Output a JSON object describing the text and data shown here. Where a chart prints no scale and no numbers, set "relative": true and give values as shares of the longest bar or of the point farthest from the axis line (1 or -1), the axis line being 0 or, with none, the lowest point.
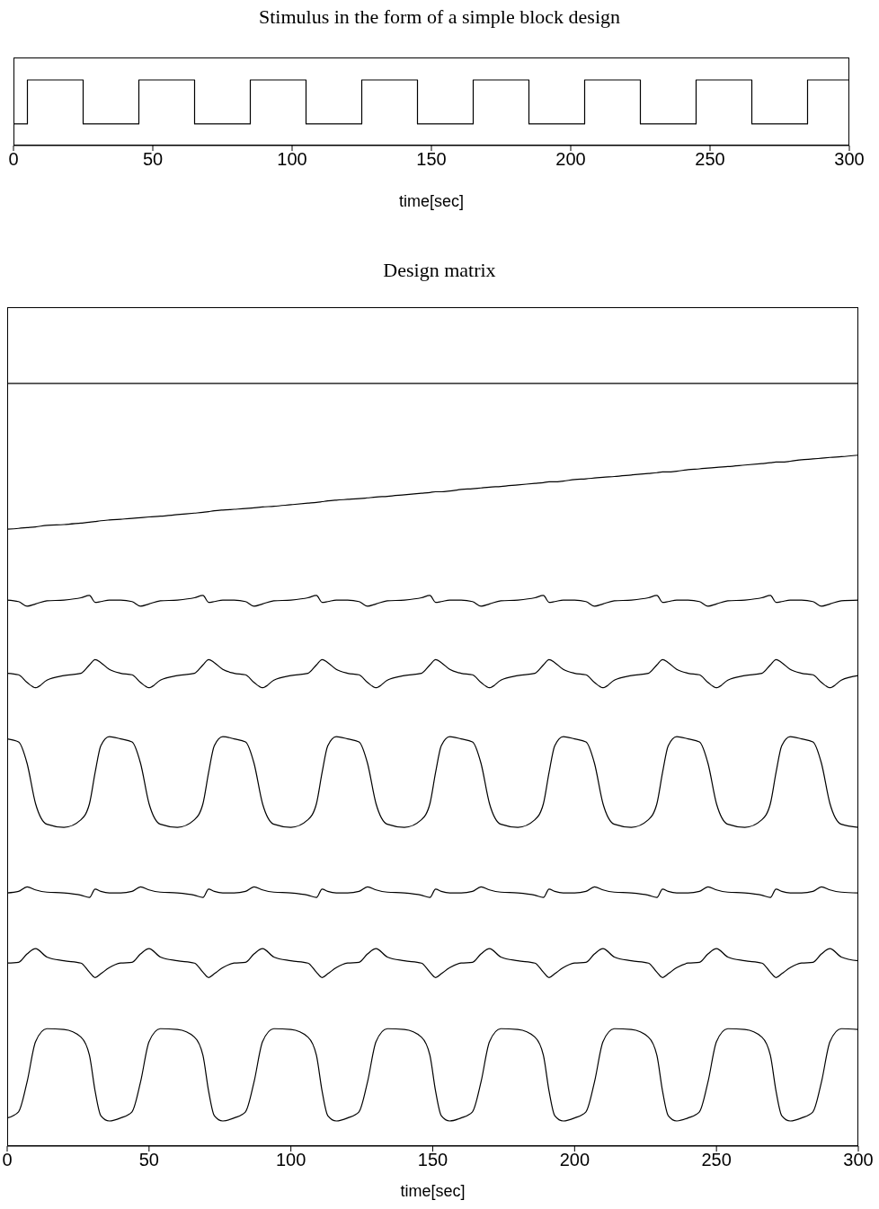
{
  "chart_data": [
    {
      "type": "step",
      "title": "Stimulus in the form of a simple block design",
      "xlabel": "time[sec]",
      "relative": true,
      "xlim": [
        0,
        300
      ],
      "xticks": [
        0,
        50,
        100,
        150,
        200,
        250,
        300
      ],
      "color": "#000000",
      "x": [
        0,
        5,
        25,
        45,
        65,
        85,
        105,
        125,
        145,
        165,
        185,
        205,
        225,
        245,
        265,
        285,
        300
      ],
      "values": [
        0.33,
        1,
        0.33,
        1,
        0.33,
        1,
        0.33,
        1,
        0.33,
        1,
        0.33,
        1,
        0.33,
        1,
        0.33,
        1,
        1
      ]
    },
    {
      "type": "line",
      "title": "Design matrix",
      "xlabel": "time[sec]",
      "relative": true,
      "xlim": [
        0,
        300
      ],
      "xticks": [
        0,
        50,
        100,
        150,
        200,
        250,
        300
      ],
      "x": [
        0,
        4,
        7,
        10,
        14,
        20,
        26,
        29,
        31,
        33,
        36,
        40,
        44,
        47,
        50,
        54,
        60,
        66,
        69,
        71,
        73,
        76,
        80,
        84,
        87,
        90,
        94,
        100,
        106,
        109,
        111,
        113,
        116,
        120,
        124,
        127,
        130,
        134,
        140,
        146,
        149,
        151,
        153,
        156,
        160,
        164,
        167,
        170,
        174,
        180,
        186,
        189,
        191,
        193,
        196,
        200,
        204,
        207,
        210,
        214,
        220,
        226,
        229,
        231,
        233,
        236,
        240,
        244,
        247,
        250,
        254,
        260,
        266,
        269,
        271,
        273,
        276,
        280,
        284,
        287,
        290,
        294,
        300
      ],
      "series": [
        {
          "color": "#000000",
          "values": [
            1,
            1,
            1,
            1,
            1,
            1,
            1,
            1,
            1,
            1,
            1,
            1,
            1,
            1,
            1,
            1,
            1,
            1,
            1,
            1,
            1,
            1,
            1,
            1,
            1,
            1,
            1,
            1,
            1,
            1,
            1,
            1,
            1,
            1,
            1,
            1,
            1,
            1,
            1,
            1,
            1,
            1,
            1,
            1,
            1,
            1,
            1,
            1,
            1,
            1,
            1,
            1,
            1,
            1,
            1,
            1,
            1,
            1,
            1,
            1,
            1,
            1,
            1,
            1,
            1,
            1,
            1,
            1,
            1,
            1,
            1,
            1,
            1,
            1,
            1,
            1,
            1,
            1,
            1,
            1,
            1,
            1,
            1
          ]
        },
        {
          "color": "#000000",
          "values": [
            0.809,
            0.81,
            0.811,
            0.812,
            0.814,
            0.815,
            0.817,
            0.818,
            0.819,
            0.82,
            0.821,
            0.822,
            0.823,
            0.824,
            0.825,
            0.826,
            0.828,
            0.83,
            0.831,
            0.832,
            0.833,
            0.834,
            0.835,
            0.836,
            0.837,
            0.838,
            0.839,
            0.841,
            0.843,
            0.844,
            0.845,
            0.846,
            0.847,
            0.848,
            0.849,
            0.85,
            0.851,
            0.852,
            0.854,
            0.856,
            0.857,
            0.858,
            0.858,
            0.859,
            0.861,
            0.862,
            0.863,
            0.864,
            0.865,
            0.867,
            0.869,
            0.87,
            0.871,
            0.871,
            0.872,
            0.874,
            0.875,
            0.876,
            0.877,
            0.878,
            0.88,
            0.882,
            0.883,
            0.884,
            0.884,
            0.885,
            0.887,
            0.888,
            0.889,
            0.89,
            0.891,
            0.893,
            0.895,
            0.896,
            0.897,
            0.897,
            0.898,
            0.9,
            0.901,
            0.902,
            0.903,
            0.904,
            0.906
          ]
        },
        {
          "color": "#000000",
          "values": [
            0.716,
            0.714,
            0.708,
            0.711,
            0.715,
            0.716,
            0.719,
            0.722,
            0.713,
            0.714,
            0.716,
            0.716,
            0.714,
            0.708,
            0.711,
            0.715,
            0.716,
            0.719,
            0.722,
            0.713,
            0.714,
            0.716,
            0.716,
            0.714,
            0.708,
            0.711,
            0.715,
            0.716,
            0.719,
            0.722,
            0.713,
            0.714,
            0.716,
            0.716,
            0.714,
            0.708,
            0.711,
            0.715,
            0.716,
            0.719,
            0.722,
            0.713,
            0.714,
            0.716,
            0.716,
            0.714,
            0.708,
            0.711,
            0.715,
            0.716,
            0.719,
            0.722,
            0.713,
            0.714,
            0.716,
            0.716,
            0.714,
            0.708,
            0.711,
            0.715,
            0.716,
            0.719,
            0.722,
            0.713,
            0.714,
            0.716,
            0.716,
            0.714,
            0.708,
            0.711,
            0.715,
            0.716,
            0.719,
            0.722,
            0.713,
            0.714,
            0.716,
            0.716,
            0.714,
            0.708,
            0.711,
            0.715,
            0.716
          ]
        },
        {
          "color": "#000000",
          "values": [
            0.62,
            0.618,
            0.608,
            0.601,
            0.611,
            0.617,
            0.62,
            0.631,
            0.638,
            0.634,
            0.625,
            0.62,
            0.618,
            0.608,
            0.601,
            0.611,
            0.617,
            0.62,
            0.631,
            0.638,
            0.634,
            0.625,
            0.62,
            0.618,
            0.608,
            0.601,
            0.611,
            0.617,
            0.62,
            0.631,
            0.638,
            0.634,
            0.625,
            0.62,
            0.618,
            0.608,
            0.601,
            0.611,
            0.617,
            0.62,
            0.631,
            0.638,
            0.634,
            0.625,
            0.62,
            0.618,
            0.608,
            0.601,
            0.611,
            0.617,
            0.62,
            0.631,
            0.638,
            0.634,
            0.625,
            0.62,
            0.618,
            0.608,
            0.601,
            0.611,
            0.617,
            0.62,
            0.631,
            0.638,
            0.634,
            0.625,
            0.62,
            0.618,
            0.608,
            0.601,
            0.611,
            0.617,
            0.62,
            0.631,
            0.638,
            0.634,
            0.625,
            0.62,
            0.618,
            0.608,
            0.601,
            0.611,
            0.617
          ]
        },
        {
          "color": "#000000",
          "values": [
            0.534,
            0.53,
            0.502,
            0.449,
            0.422,
            0.418,
            0.428,
            0.449,
            0.49,
            0.525,
            0.537,
            0.534,
            0.53,
            0.502,
            0.449,
            0.422,
            0.418,
            0.428,
            0.449,
            0.49,
            0.525,
            0.537,
            0.534,
            0.53,
            0.502,
            0.449,
            0.422,
            0.418,
            0.428,
            0.449,
            0.49,
            0.525,
            0.537,
            0.534,
            0.53,
            0.502,
            0.449,
            0.422,
            0.418,
            0.428,
            0.449,
            0.49,
            0.525,
            0.537,
            0.534,
            0.53,
            0.502,
            0.449,
            0.422,
            0.418,
            0.428,
            0.449,
            0.49,
            0.525,
            0.537,
            0.534,
            0.53,
            0.502,
            0.449,
            0.422,
            0.418,
            0.428,
            0.449,
            0.49,
            0.525,
            0.537,
            0.534,
            0.53,
            0.502,
            0.449,
            0.422,
            0.418,
            0.428,
            0.449,
            0.49,
            0.525,
            0.537,
            0.534,
            0.53,
            0.502,
            0.449,
            0.422,
            0.418
          ]
        },
        {
          "color": "#000000",
          "values": [
            0.332,
            0.334,
            0.34,
            0.336,
            0.333,
            0.332,
            0.329,
            0.326,
            0.337,
            0.334,
            0.332,
            0.332,
            0.334,
            0.34,
            0.336,
            0.333,
            0.332,
            0.329,
            0.326,
            0.337,
            0.334,
            0.332,
            0.332,
            0.334,
            0.34,
            0.336,
            0.333,
            0.332,
            0.329,
            0.326,
            0.337,
            0.334,
            0.332,
            0.332,
            0.334,
            0.34,
            0.336,
            0.333,
            0.332,
            0.329,
            0.326,
            0.337,
            0.334,
            0.332,
            0.332,
            0.334,
            0.34,
            0.336,
            0.333,
            0.332,
            0.329,
            0.326,
            0.337,
            0.334,
            0.332,
            0.332,
            0.334,
            0.34,
            0.336,
            0.333,
            0.332,
            0.329,
            0.326,
            0.337,
            0.334,
            0.332,
            0.332,
            0.334,
            0.34,
            0.336,
            0.333,
            0.332,
            0.329,
            0.326,
            0.337,
            0.334,
            0.332,
            0.332,
            0.334,
            0.34,
            0.336,
            0.333,
            0.332
          ]
        },
        {
          "color": "#000000",
          "values": [
            0.24,
            0.241,
            0.252,
            0.259,
            0.248,
            0.243,
            0.24,
            0.228,
            0.221,
            0.226,
            0.234,
            0.24,
            0.241,
            0.252,
            0.259,
            0.248,
            0.243,
            0.24,
            0.228,
            0.221,
            0.226,
            0.234,
            0.24,
            0.241,
            0.252,
            0.259,
            0.248,
            0.243,
            0.24,
            0.228,
            0.221,
            0.226,
            0.234,
            0.24,
            0.241,
            0.252,
            0.259,
            0.248,
            0.243,
            0.24,
            0.228,
            0.221,
            0.226,
            0.234,
            0.24,
            0.241,
            0.252,
            0.259,
            0.248,
            0.243,
            0.24,
            0.228,
            0.221,
            0.226,
            0.234,
            0.24,
            0.241,
            0.252,
            0.259,
            0.248,
            0.243,
            0.24,
            0.228,
            0.221,
            0.226,
            0.234,
            0.24,
            0.241,
            0.252,
            0.259,
            0.248,
            0.243,
            0.24,
            0.228,
            0.221,
            0.226,
            0.234,
            0.24,
            0.241,
            0.252,
            0.259,
            0.248,
            0.243
          ]
        },
        {
          "color": "#000000",
          "values": [
            0.037,
            0.045,
            0.084,
            0.137,
            0.154,
            0.153,
            0.143,
            0.119,
            0.072,
            0.04,
            0.033,
            0.037,
            0.045,
            0.084,
            0.137,
            0.154,
            0.153,
            0.143,
            0.119,
            0.072,
            0.04,
            0.033,
            0.037,
            0.045,
            0.084,
            0.137,
            0.154,
            0.153,
            0.143,
            0.119,
            0.072,
            0.04,
            0.033,
            0.037,
            0.045,
            0.084,
            0.137,
            0.154,
            0.153,
            0.143,
            0.119,
            0.072,
            0.04,
            0.033,
            0.037,
            0.045,
            0.084,
            0.137,
            0.154,
            0.153,
            0.143,
            0.119,
            0.072,
            0.04,
            0.033,
            0.037,
            0.045,
            0.084,
            0.137,
            0.154,
            0.153,
            0.143,
            0.119,
            0.072,
            0.04,
            0.033,
            0.037,
            0.045,
            0.084,
            0.137,
            0.154,
            0.153,
            0.143,
            0.119,
            0.072,
            0.04,
            0.033,
            0.037,
            0.045,
            0.084,
            0.137,
            0.154,
            0.153
          ]
        }
      ]
    }
  ]
}
